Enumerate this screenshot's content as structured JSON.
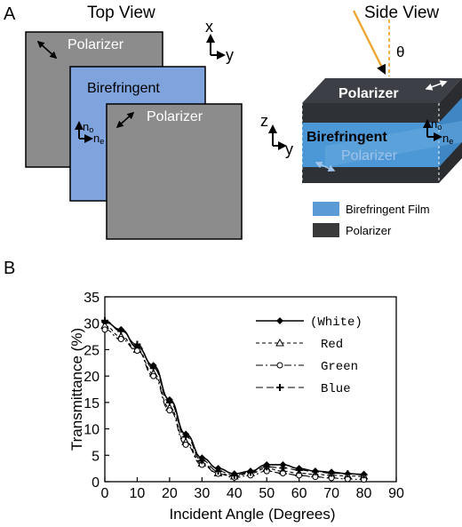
{
  "panel_a": {
    "label": "A",
    "top_view_title": "Top View",
    "side_view_title": "Side View",
    "polarizer_back": "Polarizer",
    "birefringent": "Birefringent",
    "polarizer_front": "Polarizer",
    "n_o": "n",
    "n_o_sub": "o",
    "n_e": "n",
    "n_e_sub": "e",
    "axis_x": "x",
    "axis_y": "y",
    "axis_z": "z",
    "axis_y2": "y",
    "theta": "θ",
    "side_polarizer_top": "Polarizer",
    "side_birefringent": "Birefringent",
    "side_polarizer_bottom": "Polarizer",
    "legend": [
      {
        "label": "Birefringent Film",
        "color": "#5b9bd5"
      },
      {
        "label": "Polarizer",
        "color": "#3a3a3a"
      }
    ],
    "colors": {
      "polarizer_gray": "#8c8c8c",
      "birefringent_blue": "#7fa3dc",
      "dark_polarizer": "#2e3136",
      "film_blue": "#4c97d6",
      "sun_ray": "#f0a020"
    }
  },
  "panel_b_label": "B",
  "chart_data": {
    "type": "line",
    "xlabel": "Incident Angle (Degrees)",
    "ylabel": "Transmittance (%)",
    "xlim": [
      0,
      90
    ],
    "ylim": [
      0,
      35
    ],
    "xticks": [
      0,
      10,
      20,
      30,
      40,
      50,
      60,
      70,
      80,
      90
    ],
    "yticks": [
      0,
      5,
      10,
      15,
      20,
      25,
      30,
      35
    ],
    "legend_position": "top-right",
    "series": [
      {
        "name": "(White)",
        "marker": "diamond",
        "dash": "",
        "x": [
          0,
          5,
          10,
          15,
          20,
          25,
          30,
          35,
          40,
          45,
          50,
          55,
          60,
          65,
          70,
          75,
          80
        ],
        "y": [
          30.2,
          28.8,
          25.5,
          22.0,
          15.5,
          9.0,
          4.5,
          2.5,
          1.5,
          2.0,
          3.2,
          3.2,
          2.5,
          2.0,
          1.8,
          1.5,
          1.4
        ]
      },
      {
        "name": "Red",
        "marker": "triangle",
        "dash": "4,3",
        "x": [
          0,
          5,
          10,
          15,
          20,
          25,
          30,
          35,
          40,
          45,
          50,
          55,
          60,
          65,
          70,
          75,
          80
        ],
        "y": [
          29.5,
          27.5,
          25.0,
          20.5,
          14.0,
          7.5,
          3.5,
          1.6,
          1.0,
          1.6,
          2.5,
          2.0,
          1.6,
          1.4,
          1.2,
          1.1,
          1.0
        ]
      },
      {
        "name": "Green",
        "marker": "circle",
        "dash": "8,3,2,3",
        "x": [
          0,
          5,
          10,
          15,
          20,
          25,
          30,
          35,
          40,
          45,
          50,
          55,
          60,
          65,
          70,
          75,
          80
        ],
        "y": [
          28.8,
          27.0,
          24.8,
          20.0,
          13.5,
          7.0,
          3.2,
          1.5,
          0.8,
          1.2,
          2.0,
          1.6,
          1.2,
          0.9,
          0.7,
          0.5,
          0.4
        ]
      },
      {
        "name": "Blue",
        "marker": "cross",
        "dash": "8,4",
        "x": [
          0,
          5,
          10,
          15,
          20,
          25,
          30,
          35,
          40,
          45,
          50,
          55,
          60,
          65,
          70,
          75,
          80
        ],
        "y": [
          30.5,
          28.5,
          26.0,
          21.5,
          15.0,
          8.5,
          4.0,
          2.0,
          1.2,
          1.8,
          2.8,
          2.6,
          2.2,
          1.9,
          1.6,
          1.5,
          1.3
        ]
      }
    ]
  }
}
